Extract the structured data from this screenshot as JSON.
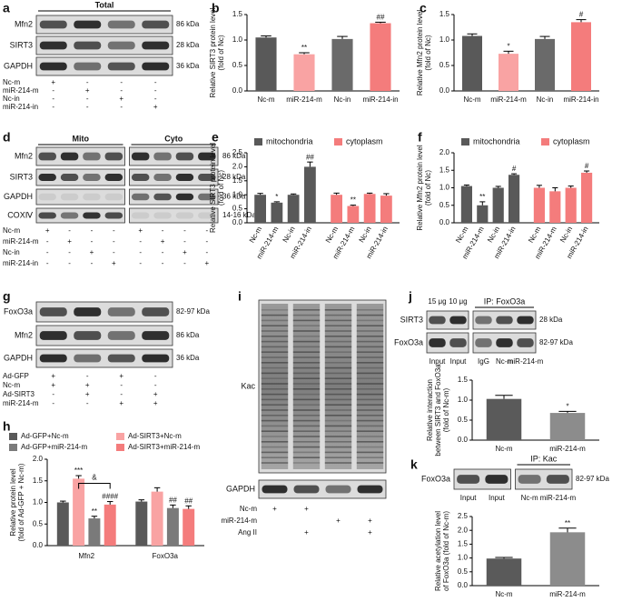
{
  "blots": [
    {
      "panel": "a",
      "headers": [
        "Total"
      ],
      "rows": [
        {
          "protein": "Mfn2",
          "kda": "86 kDa"
        },
        {
          "protein": "SIRT3",
          "kda": "28 kDa"
        },
        {
          "protein": "GAPDH",
          "kda": "36 kDa"
        }
      ],
      "treatments": [
        {
          "name": "Nc-m",
          "signs": [
            "+",
            "-",
            "-",
            "-"
          ]
        },
        {
          "name": "miR-214-m",
          "signs": [
            "-",
            "+",
            "-",
            "-"
          ]
        },
        {
          "name": "Nc-in",
          "signs": [
            "-",
            "-",
            "+",
            "-"
          ]
        },
        {
          "name": "miR-214-in",
          "signs": [
            "-",
            "-",
            "-",
            "+"
          ]
        }
      ]
    },
    {
      "panel": "d",
      "headers": [
        "Mito",
        "Cyto"
      ],
      "rows": [
        {
          "protein": "Mfn2",
          "kda": "86 kDa"
        },
        {
          "protein": "SIRT3",
          "kda": "28 kDa"
        },
        {
          "protein": "GAPDH",
          "kda": "36 kDa"
        },
        {
          "protein": "COXⅣ",
          "kda": "14-16 kDa"
        }
      ],
      "treatments": [
        {
          "name": "Nc-m",
          "signs": [
            "+",
            "-",
            "-",
            "-",
            "+",
            "-",
            "-",
            "-"
          ]
        },
        {
          "name": "miR-214-m",
          "signs": [
            "-",
            "+",
            "-",
            "-",
            "-",
            "+",
            "-",
            "-"
          ]
        },
        {
          "name": "Nc-in",
          "signs": [
            "-",
            "-",
            "+",
            "-",
            "-",
            "-",
            "+",
            "-"
          ]
        },
        {
          "name": "miR-214-in",
          "signs": [
            "-",
            "-",
            "-",
            "+",
            "-",
            "-",
            "-",
            "+"
          ]
        }
      ]
    },
    {
      "panel": "g",
      "rows": [
        {
          "protein": "FoxO3a",
          "kda": "82-97 kDa"
        },
        {
          "protein": "Mfn2",
          "kda": "86 kDa"
        },
        {
          "protein": "GAPDH",
          "kda": "36 kDa"
        }
      ],
      "treatments": [
        {
          "name": "Ad-GFP",
          "signs": [
            "+",
            "-",
            "+",
            "-"
          ]
        },
        {
          "name": "Nc-m",
          "signs": [
            "+",
            "+",
            "-",
            "-"
          ]
        },
        {
          "name": "Ad-SIRT3",
          "signs": [
            "-",
            "+",
            "-",
            "+"
          ]
        },
        {
          "name": "miR-214-m",
          "signs": [
            "-",
            "-",
            "+",
            "+"
          ]
        }
      ]
    },
    {
      "panel": "i",
      "rows": [
        {
          "protein": "Kac"
        },
        {
          "protein": "GAPDH"
        }
      ],
      "treatments": [
        {
          "name": "Nc-m",
          "signs": [
            "+",
            "+",
            null,
            null
          ]
        },
        {
          "name": "miR-214-m",
          "signs": [
            null,
            null,
            "+",
            "+"
          ]
        },
        {
          "name": "Ang II",
          "signs": [
            null,
            "+",
            null,
            "+"
          ]
        }
      ]
    },
    {
      "panel": "j",
      "top_labels": [
        "15 μg",
        "10 μg"
      ],
      "ip": "IP: FoxO3a",
      "rows": [
        {
          "protein": "SIRT3",
          "kda": "28 kDa"
        },
        {
          "protein": "FoxO3a",
          "kda": "82-97 kDa"
        }
      ],
      "lanes": [
        "Input",
        "Input",
        "IgG",
        "Nc-m",
        "miR-214-m"
      ]
    },
    {
      "panel": "k",
      "ip": "IP: Kac",
      "rows": [
        {
          "protein": "FoxO3a",
          "kda": "82-97 kDa"
        }
      ],
      "lanes": [
        "Input",
        "Input",
        "Nc-m",
        "miR-214-m"
      ]
    }
  ],
  "chart_data": [
    {
      "type": "bar",
      "panel": "b",
      "y_label": [
        "Relative SIRT3 protein level",
        "(fold of Nc)"
      ],
      "categories": [
        "Nc-m",
        "miR-214-m",
        "Nc-in",
        "miR-214-in"
      ],
      "colors": [
        "#595959",
        "#f9a3a3",
        "#6a6a6a",
        "#f47c7c"
      ],
      "values": [
        1.05,
        0.72,
        1.02,
        1.33
      ],
      "errors": [
        0.03,
        0.03,
        0.05,
        0.02
      ],
      "annotations": [
        null,
        "**",
        null,
        "##"
      ],
      "ylim": [
        0,
        1.5
      ],
      "yticks": [
        {
          "value": 0,
          "label": "0.0"
        },
        0.5,
        {
          "value": 1,
          "label": "1.0"
        },
        1.5
      ]
    },
    {
      "type": "bar",
      "panel": "c",
      "y_label": [
        "Relative Mfn2 protein level",
        "(fold of Nc)"
      ],
      "categories": [
        "Nc-m",
        "miR-214-m",
        "Nc-in",
        "miR-214-in"
      ],
      "colors": [
        "#595959",
        "#f9a3a3",
        "#6a6a6a",
        "#f47c7c"
      ],
      "values": [
        1.08,
        0.73,
        1.02,
        1.35
      ],
      "errors": [
        0.04,
        0.05,
        0.05,
        0.05
      ],
      "annotations": [
        null,
        "*",
        null,
        "#"
      ],
      "ylim": [
        0,
        1.5
      ],
      "yticks": [
        {
          "value": 0,
          "label": "0.0"
        },
        0.5,
        {
          "value": 1,
          "label": "1.0"
        },
        1.5
      ]
    },
    {
      "type": "split_bar",
      "panel": "e",
      "y_label": [
        "Relative SIRT3 protein level",
        "(fold of Nc)"
      ],
      "categories": [
        "Nc-m",
        "miR-214-m",
        "Nc-in",
        "miR-214-in"
      ],
      "series": [
        {
          "name": "mitochondria",
          "color": "#595959",
          "values": [
            1.0,
            0.72,
            1.0,
            2.0
          ],
          "errors": [
            0.05,
            0.03,
            0.03,
            0.17
          ],
          "annotations": [
            null,
            "*",
            null,
            "##"
          ]
        },
        {
          "name": "cytoplasm",
          "color": "#f47c7c",
          "values": [
            1.0,
            0.6,
            1.03,
            0.97
          ],
          "errors": [
            0.06,
            0.03,
            0.03,
            0.07
          ],
          "annotations": [
            null,
            "**",
            null,
            null
          ]
        }
      ],
      "ylim": [
        0,
        2.5
      ],
      "yticks": [
        {
          "value": 0,
          "label": "0.0"
        },
        0.5,
        {
          "value": 1,
          "label": "1.0"
        },
        1.5,
        {
          "value": 2,
          "label": "2.0"
        },
        2.5
      ]
    },
    {
      "type": "split_bar",
      "panel": "f",
      "y_label": [
        "Relative Mfn2 protein level",
        "(fold of Nc)"
      ],
      "categories": [
        "Nc-m",
        "miR-214-m",
        "Nc-in",
        "miR-214-in"
      ],
      "series": [
        {
          "name": "mitochondria",
          "color": "#595959",
          "values": [
            1.05,
            0.5,
            1.0,
            1.37
          ],
          "errors": [
            0.03,
            0.1,
            0.04,
            0.03
          ],
          "annotations": [
            null,
            "**",
            null,
            "#"
          ]
        },
        {
          "name": "cytoplasm",
          "color": "#f47c7c",
          "values": [
            1.0,
            0.9,
            1.0,
            1.43
          ],
          "errors": [
            0.07,
            0.1,
            0.05,
            0.05
          ],
          "annotations": [
            null,
            null,
            null,
            "#"
          ]
        }
      ],
      "ylim": [
        0,
        2
      ],
      "yticks": [
        {
          "value": 0,
          "label": "0.0"
        },
        0.5,
        {
          "value": 1,
          "label": "1.0"
        },
        1.5,
        {
          "value": 2,
          "label": "2.0"
        }
      ]
    },
    {
      "type": "grouped_bar",
      "panel": "h",
      "y_label": [
        "Relative protein level",
        "(fold of Ad-GFP + Nc-m)"
      ],
      "categories": [
        "Mfn2",
        "FoxO3a"
      ],
      "series": [
        {
          "name": "Ad-GFP+Nc-m",
          "color": "#595959",
          "values": [
            1.0,
            1.02
          ],
          "errors": [
            0.03,
            0.04
          ],
          "annotations": [
            null,
            null
          ]
        },
        {
          "name": "Ad-SIRT3+Nc-m",
          "color": "#f9a3a3",
          "values": [
            1.55,
            1.25
          ],
          "errors": [
            0.07,
            0.09
          ],
          "annotations": [
            "***",
            null
          ]
        },
        {
          "name": "Ad-GFP+miR-214-m",
          "color": "#7a7a7a",
          "values": [
            0.63,
            0.87
          ],
          "errors": [
            0.05,
            0.07
          ],
          "annotations": [
            "**",
            "##"
          ]
        },
        {
          "name": "Ad-SIRT3+miR-214-m",
          "color": "#f47c7c",
          "values": [
            0.95,
            0.85
          ],
          "errors": [
            0.07,
            0.07
          ],
          "annotations": [
            "####",
            "##"
          ]
        }
      ],
      "bracket_label": "&",
      "ylim": [
        0,
        2
      ],
      "yticks": [
        {
          "value": 0,
          "label": "0.0"
        },
        0.5,
        {
          "value": 1,
          "label": "1.0"
        },
        1.5,
        {
          "value": 2,
          "label": "2.0"
        }
      ]
    },
    {
      "type": "bar",
      "y_label": [
        "Relative interaction",
        "between SIRT3 and FoxO3a",
        "(fold of Nc-m)"
      ],
      "categories": [
        "Nc-m",
        "miR-214-m"
      ],
      "colors": [
        "#5a5a5a",
        "#8c8c8c"
      ],
      "values": [
        1.03,
        0.68
      ],
      "errors": [
        0.09,
        0.04
      ],
      "annotations": [
        null,
        "*"
      ],
      "ylim": [
        0,
        1.5
      ],
      "yticks": [
        {
          "value": 0,
          "label": "0.0"
        },
        0.5,
        {
          "value": 1,
          "label": "1.0"
        },
        1.5
      ]
    },
    {
      "type": "bar",
      "y_label": [
        "Relative acetylation level",
        "of FoxO3a (fold of Nc-m)"
      ],
      "categories": [
        "Nc-m",
        "miR-214-m"
      ],
      "colors": [
        "#5a5a5a",
        "#8c8c8c"
      ],
      "values": [
        0.98,
        1.93
      ],
      "errors": [
        0.04,
        0.15
      ],
      "annotations": [
        null,
        "**"
      ],
      "ylim": [
        0,
        2.5
      ],
      "yticks": [
        {
          "value": 0,
          "label": "0.0"
        },
        0.5,
        {
          "value": 1,
          "label": "1.0"
        },
        1.5,
        {
          "value": 2,
          "label": "2.0"
        },
        2.5
      ]
    }
  ]
}
